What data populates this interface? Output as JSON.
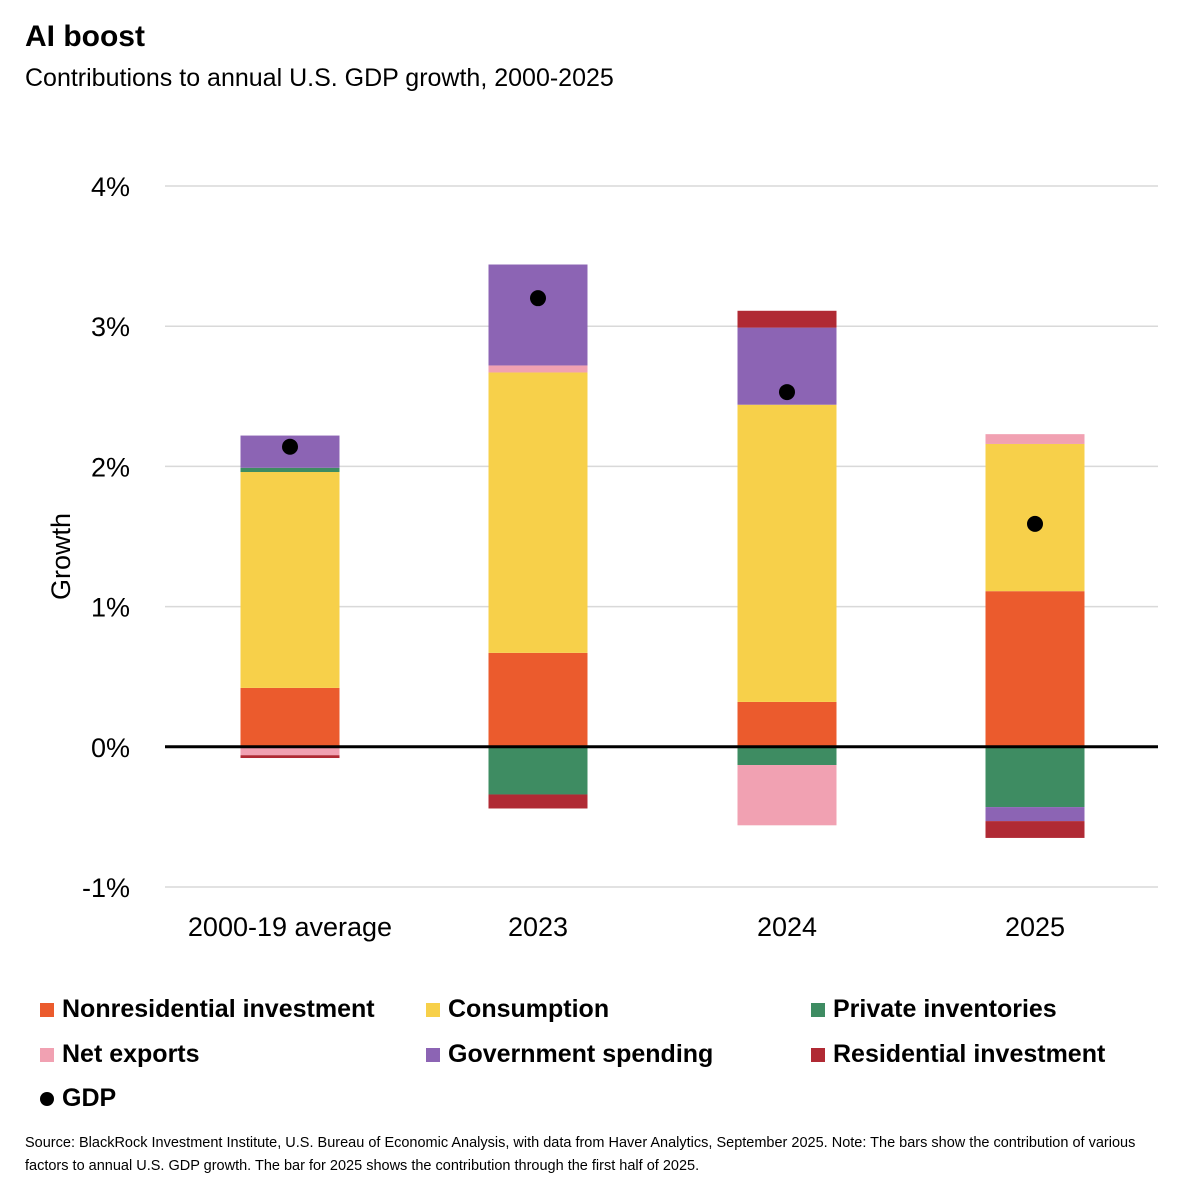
{
  "header": {
    "title": "AI boost",
    "subtitle": "Contributions to annual U.S. GDP growth, 2000-2025"
  },
  "chart_data": {
    "type": "bar",
    "stacked": true,
    "title": "AI boost",
    "subtitle": "Contributions to annual U.S. GDP growth, 2000-2025",
    "xlabel": "",
    "ylabel": "Growth",
    "ylim": [
      -1,
      4
    ],
    "yticks": [
      -1,
      0,
      1,
      2,
      3,
      4
    ],
    "ytick_labels": [
      "-1%",
      "0%",
      "1%",
      "2%",
      "3%",
      "4%"
    ],
    "grid": true,
    "categories": [
      "2000-19 average",
      "2023",
      "2024",
      "2025"
    ],
    "series": [
      {
        "name": "Nonresidential investment",
        "color": "#eb5b2d",
        "values": [
          0.42,
          0.67,
          0.32,
          1.11
        ]
      },
      {
        "name": "Consumption",
        "color": "#f7d04a",
        "values": [
          1.54,
          2.0,
          2.12,
          1.05
        ]
      },
      {
        "name": "Private inventories",
        "color": "#3e8c62",
        "values": [
          0.03,
          -0.34,
          -0.13,
          -0.43
        ]
      },
      {
        "name": "Net exports",
        "color": "#f1a1b2",
        "values": [
          -0.06,
          0.05,
          -0.43,
          0.07
        ]
      },
      {
        "name": "Government spending",
        "color": "#8c64b4",
        "values": [
          0.23,
          0.72,
          0.55,
          -0.1
        ]
      },
      {
        "name": "Residential investment",
        "color": "#b02a34",
        "values": [
          -0.02,
          -0.1,
          0.12,
          -0.12
        ]
      }
    ],
    "gdp": {
      "name": "GDP",
      "color": "#000000",
      "values": [
        2.14,
        3.2,
        2.53,
        1.59
      ]
    },
    "stack_order": {
      "positive": [
        0,
        1,
        2,
        3,
        4,
        5
      ],
      "negative_override": {
        "0": [
          3,
          5
        ],
        "1": [
          2,
          5
        ],
        "2": [
          2,
          3
        ],
        "3": [
          2,
          4,
          5
        ]
      }
    },
    "legend": [
      {
        "label": "Nonresidential investment",
        "color": "#eb5b2d",
        "marker": "square"
      },
      {
        "label": "Consumption",
        "color": "#f7d04a",
        "marker": "square"
      },
      {
        "label": "Private inventories",
        "color": "#3e8c62",
        "marker": "square"
      },
      {
        "label": "Net exports",
        "color": "#f1a1b2",
        "marker": "square"
      },
      {
        "label": "Government spending",
        "color": "#8c64b4",
        "marker": "square"
      },
      {
        "label": "Residential investment",
        "color": "#b02a34",
        "marker": "square"
      },
      {
        "label": "GDP",
        "color": "#000000",
        "marker": "dot"
      }
    ],
    "legend_position": "bottom"
  },
  "footer": {
    "source": "Source: BlackRock Investment Institute, U.S. Bureau of Economic Analysis, with data from Haver Analytics, September 2025. Note: The bars show the contribution of various factors to annual U.S. GDP growth. The bar for 2025 shows the contribution through the first half of 2025."
  }
}
